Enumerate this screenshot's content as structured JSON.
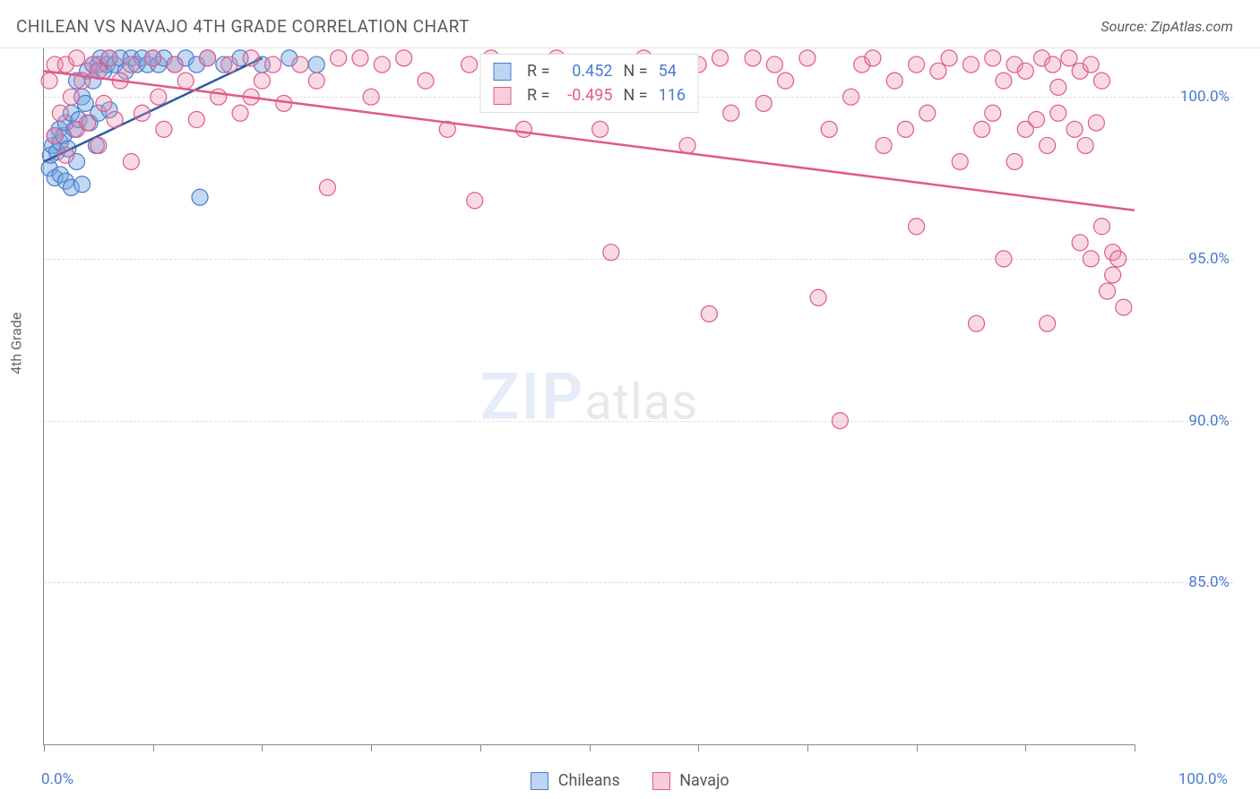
{
  "title": "CHILEAN VS NAVAJO 4TH GRADE CORRELATION CHART",
  "source": "Source: ZipAtlas.com",
  "axis": {
    "y_title": "4th Grade",
    "x_min": 0.0,
    "x_max": 100.0,
    "y_min": 80.0,
    "y_max": 101.5,
    "x_ticks": [
      0,
      10,
      20,
      30,
      40,
      50,
      60,
      70,
      80,
      90,
      100
    ],
    "x_tick_labels": {
      "0": "0.0%",
      "100": "100.0%"
    },
    "y_gridlines": [
      85.0,
      90.0,
      95.0,
      100.0
    ],
    "y_tick_labels": {
      "85": "85.0%",
      "90": "90.0%",
      "95": "95.0%",
      "100": "100.0%"
    },
    "grid_color": "#dcdcdc",
    "axis_color": "#888888",
    "tick_label_color": "#4a7bd0"
  },
  "watermark": {
    "zip": "ZIP",
    "atlas": "atlas"
  },
  "legend_top": [
    {
      "swatch_fill": "#bcd5f2",
      "swatch_stroke": "#4a7bd0",
      "r_label": "R =",
      "r": "0.452",
      "r_neg": false,
      "n_label": "N =",
      "n": "54"
    },
    {
      "swatch_fill": "#f7cdd9",
      "swatch_stroke": "#e05a8a",
      "r_label": "R =",
      "r": "-0.495",
      "r_neg": true,
      "n_label": "N =",
      "n": "116"
    }
  ],
  "legend_bottom": [
    {
      "swatch_fill": "#bcd5f2",
      "swatch_stroke": "#4a7bd0",
      "label": "Chileans"
    },
    {
      "swatch_fill": "#f7cdd9",
      "swatch_stroke": "#e05a8a",
      "label": "Navajo"
    }
  ],
  "series": [
    {
      "name": "chileans",
      "marker_fill": "rgba(120,170,225,0.45)",
      "marker_stroke": "#4a7bd0",
      "marker_r": 9,
      "line_color": "#2c5aa0",
      "line_width": 2.5,
      "trend": {
        "x1": 0,
        "y1": 98.0,
        "x2": 20,
        "y2": 101.2
      },
      "points": [
        [
          0.5,
          97.8
        ],
        [
          0.6,
          98.2
        ],
        [
          0.8,
          98.5
        ],
        [
          1.0,
          97.5
        ],
        [
          1.0,
          98.8
        ],
        [
          1.2,
          98.3
        ],
        [
          1.4,
          99.0
        ],
        [
          1.5,
          97.6
        ],
        [
          1.5,
          98.6
        ],
        [
          1.8,
          98.8
        ],
        [
          2.0,
          97.4
        ],
        [
          2.0,
          99.2
        ],
        [
          2.2,
          98.4
        ],
        [
          2.5,
          99.5
        ],
        [
          2.5,
          97.2
        ],
        [
          2.8,
          99.0
        ],
        [
          3.0,
          98.0
        ],
        [
          3.0,
          100.5
        ],
        [
          3.2,
          99.3
        ],
        [
          3.5,
          100.0
        ],
        [
          3.5,
          97.3
        ],
        [
          3.8,
          99.8
        ],
        [
          4.0,
          100.8
        ],
        [
          4.2,
          99.2
        ],
        [
          4.5,
          100.5
        ],
        [
          4.5,
          101.0
        ],
        [
          4.8,
          98.5
        ],
        [
          5.0,
          101.0
        ],
        [
          5.0,
          99.5
        ],
        [
          5.2,
          101.2
        ],
        [
          5.5,
          100.8
        ],
        [
          5.8,
          101.0
        ],
        [
          6.0,
          101.2
        ],
        [
          6.0,
          99.6
        ],
        [
          6.5,
          101.0
        ],
        [
          7.0,
          101.2
        ],
        [
          7.5,
          100.8
        ],
        [
          8.0,
          101.2
        ],
        [
          8.5,
          101.0
        ],
        [
          9.0,
          101.2
        ],
        [
          9.5,
          101.0
        ],
        [
          10.0,
          101.2
        ],
        [
          10.5,
          101.0
        ],
        [
          11.0,
          101.2
        ],
        [
          12.0,
          101.0
        ],
        [
          13.0,
          101.2
        ],
        [
          14.0,
          101.0
        ],
        [
          15.0,
          101.2
        ],
        [
          14.3,
          96.9
        ],
        [
          16.5,
          101.0
        ],
        [
          18.0,
          101.2
        ],
        [
          20.0,
          101.0
        ],
        [
          22.5,
          101.2
        ],
        [
          25.0,
          101.0
        ]
      ]
    },
    {
      "name": "navajo",
      "marker_fill": "rgba(235,140,170,0.32)",
      "marker_stroke": "#e05a8a",
      "marker_r": 9,
      "line_color": "#e05a8a",
      "line_width": 2.5,
      "trend": {
        "x1": 0,
        "y1": 100.8,
        "x2": 100,
        "y2": 96.5
      },
      "points": [
        [
          0.5,
          100.5
        ],
        [
          1.0,
          101.0
        ],
        [
          1.0,
          98.8
        ],
        [
          1.5,
          99.5
        ],
        [
          2.0,
          101.0
        ],
        [
          2.0,
          98.2
        ],
        [
          2.5,
          100.0
        ],
        [
          3.0,
          101.2
        ],
        [
          3.0,
          99.0
        ],
        [
          3.5,
          100.5
        ],
        [
          4.0,
          99.2
        ],
        [
          4.5,
          101.0
        ],
        [
          5.0,
          98.5
        ],
        [
          5.0,
          100.8
        ],
        [
          5.5,
          99.8
        ],
        [
          6.0,
          101.2
        ],
        [
          6.5,
          99.3
        ],
        [
          7.0,
          100.5
        ],
        [
          8.0,
          98.0
        ],
        [
          8.0,
          101.0
        ],
        [
          9.0,
          99.5
        ],
        [
          10.0,
          101.2
        ],
        [
          10.5,
          100.0
        ],
        [
          11.0,
          99.0
        ],
        [
          12.0,
          101.0
        ],
        [
          13.0,
          100.5
        ],
        [
          14.0,
          99.3
        ],
        [
          15.0,
          101.2
        ],
        [
          16.0,
          100.0
        ],
        [
          17.0,
          101.0
        ],
        [
          18.0,
          99.5
        ],
        [
          19.0,
          101.2
        ],
        [
          20.0,
          100.5
        ],
        [
          21.0,
          101.0
        ],
        [
          22.0,
          99.8
        ],
        [
          19.0,
          100.0
        ],
        [
          23.5,
          101.0
        ],
        [
          25.0,
          100.5
        ],
        [
          26.0,
          97.2
        ],
        [
          27.0,
          101.2
        ],
        [
          29.0,
          101.2
        ],
        [
          30.0,
          100.0
        ],
        [
          31.0,
          101.0
        ],
        [
          33.0,
          101.2
        ],
        [
          35.0,
          100.5
        ],
        [
          37.0,
          99.0
        ],
        [
          39.0,
          101.0
        ],
        [
          39.5,
          96.8
        ],
        [
          41.0,
          101.2
        ],
        [
          43.0,
          100.0
        ],
        [
          44.0,
          99.0
        ],
        [
          45.0,
          101.0
        ],
        [
          47.0,
          101.2
        ],
        [
          49.0,
          100.5
        ],
        [
          51.0,
          99.0
        ],
        [
          52.0,
          95.2
        ],
        [
          53.0,
          101.0
        ],
        [
          55.0,
          101.2
        ],
        [
          57.0,
          100.0
        ],
        [
          59.0,
          98.5
        ],
        [
          60.0,
          101.0
        ],
        [
          61.0,
          93.3
        ],
        [
          62.0,
          101.2
        ],
        [
          63.0,
          99.5
        ],
        [
          65.0,
          101.2
        ],
        [
          66.0,
          99.8
        ],
        [
          67.0,
          101.0
        ],
        [
          68.0,
          100.5
        ],
        [
          70.0,
          101.2
        ],
        [
          71.0,
          93.8
        ],
        [
          72.0,
          99.0
        ],
        [
          73.0,
          90.0
        ],
        [
          74.0,
          100.0
        ],
        [
          75.0,
          101.0
        ],
        [
          76.0,
          101.2
        ],
        [
          77.0,
          98.5
        ],
        [
          78.0,
          100.5
        ],
        [
          79.0,
          99.0
        ],
        [
          80.0,
          101.0
        ],
        [
          80.0,
          96.0
        ],
        [
          81.0,
          99.5
        ],
        [
          82.0,
          100.8
        ],
        [
          83.0,
          101.2
        ],
        [
          84.0,
          98.0
        ],
        [
          85.0,
          101.0
        ],
        [
          85.5,
          93.0
        ],
        [
          86.0,
          99.0
        ],
        [
          87.0,
          101.2
        ],
        [
          87.0,
          99.5
        ],
        [
          88.0,
          100.5
        ],
        [
          88.0,
          95.0
        ],
        [
          89.0,
          98.0
        ],
        [
          89.0,
          101.0
        ],
        [
          90.0,
          99.0
        ],
        [
          90.0,
          100.8
        ],
        [
          91.0,
          99.3
        ],
        [
          91.5,
          101.2
        ],
        [
          92.0,
          93.0
        ],
        [
          92.0,
          98.5
        ],
        [
          92.5,
          101.0
        ],
        [
          93.0,
          99.5
        ],
        [
          93.0,
          100.3
        ],
        [
          94.0,
          101.2
        ],
        [
          94.5,
          99.0
        ],
        [
          95.0,
          95.5
        ],
        [
          95.0,
          100.8
        ],
        [
          95.5,
          98.5
        ],
        [
          96.0,
          95.0
        ],
        [
          96.0,
          101.0
        ],
        [
          96.5,
          99.2
        ],
        [
          97.0,
          96.0
        ],
        [
          97.0,
          100.5
        ],
        [
          97.5,
          94.0
        ],
        [
          98.0,
          94.5
        ],
        [
          98.0,
          95.2
        ],
        [
          98.5,
          95.0
        ],
        [
          99.0,
          93.5
        ]
      ]
    }
  ]
}
